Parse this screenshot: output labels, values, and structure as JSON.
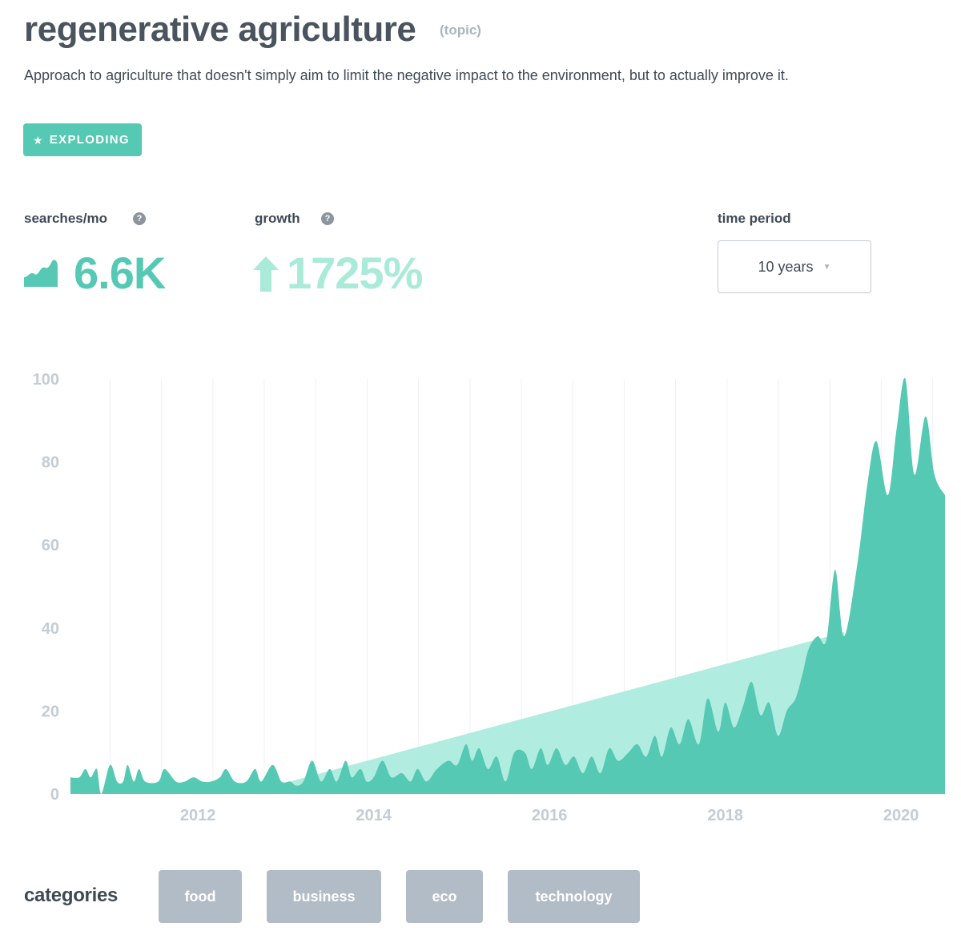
{
  "header": {
    "title": "regenerative agriculture",
    "type_tag": "(topic)",
    "description": "Approach to agriculture that doesn't simply aim to limit the negative impact to the environment, but to actually improve it."
  },
  "status_badge": {
    "label": "EXPLODING",
    "icon": "star-icon",
    "color": "#55c9b3"
  },
  "stats": {
    "searches": {
      "label": "searches/mo",
      "value": "6.6K",
      "icon": "trend-icon"
    },
    "growth": {
      "label": "growth",
      "value": "1725%",
      "icon": "arrow-up-icon"
    },
    "help_icon": "?"
  },
  "time_period": {
    "label": "time period",
    "selected": "10 years"
  },
  "categories": {
    "label": "categories",
    "items": [
      "food",
      "business",
      "eco",
      "technology"
    ]
  },
  "chart_data": {
    "type": "area",
    "title": "",
    "xlabel": "",
    "ylabel": "",
    "ylim": [
      0,
      100
    ],
    "xlim": [
      2010.55,
      2020.5
    ],
    "y_ticks": [
      0,
      20,
      40,
      60,
      80,
      100
    ],
    "x_ticks": [
      2012,
      2014,
      2016,
      2018,
      2020
    ],
    "grid": "vertical",
    "series": [
      {
        "values": [
          [
            2010.55,
            4
          ],
          [
            2010.65,
            4
          ],
          [
            2010.72,
            6
          ],
          [
            2010.78,
            4
          ],
          [
            2010.85,
            6
          ],
          [
            2010.9,
            0
          ],
          [
            2011.0,
            7
          ],
          [
            2011.08,
            3
          ],
          [
            2011.15,
            3
          ],
          [
            2011.2,
            7
          ],
          [
            2011.27,
            3
          ],
          [
            2011.33,
            6
          ],
          [
            2011.4,
            3
          ],
          [
            2011.55,
            3
          ],
          [
            2011.62,
            6
          ],
          [
            2011.75,
            3
          ],
          [
            2011.85,
            3
          ],
          [
            2011.95,
            4
          ],
          [
            2012.05,
            3
          ],
          [
            2012.15,
            3
          ],
          [
            2012.25,
            4
          ],
          [
            2012.32,
            6
          ],
          [
            2012.42,
            3
          ],
          [
            2012.55,
            3
          ],
          [
            2012.65,
            6
          ],
          [
            2012.72,
            3
          ],
          [
            2012.85,
            7
          ],
          [
            2012.95,
            3
          ],
          [
            2013.05,
            3
          ],
          [
            2013.12,
            2
          ],
          [
            2013.2,
            3
          ],
          [
            2013.3,
            8
          ],
          [
            2013.4,
            3
          ],
          [
            2013.5,
            6
          ],
          [
            2013.58,
            3
          ],
          [
            2013.68,
            8
          ],
          [
            2013.75,
            4
          ],
          [
            2013.85,
            6
          ],
          [
            2013.92,
            3
          ],
          [
            2014.0,
            4
          ],
          [
            2014.1,
            8
          ],
          [
            2014.2,
            4
          ],
          [
            2014.32,
            5
          ],
          [
            2014.42,
            3
          ],
          [
            2014.5,
            6
          ],
          [
            2014.6,
            3
          ],
          [
            2014.72,
            6
          ],
          [
            2014.85,
            8
          ],
          [
            2014.95,
            7
          ],
          [
            2015.05,
            12
          ],
          [
            2015.12,
            8
          ],
          [
            2015.2,
            11
          ],
          [
            2015.3,
            6
          ],
          [
            2015.4,
            9
          ],
          [
            2015.5,
            3
          ],
          [
            2015.6,
            10
          ],
          [
            2015.72,
            10
          ],
          [
            2015.8,
            6
          ],
          [
            2015.9,
            11
          ],
          [
            2015.98,
            7
          ],
          [
            2016.08,
            11
          ],
          [
            2016.18,
            7
          ],
          [
            2016.28,
            9
          ],
          [
            2016.38,
            5
          ],
          [
            2016.48,
            9
          ],
          [
            2016.58,
            5
          ],
          [
            2016.68,
            11
          ],
          [
            2016.78,
            8
          ],
          [
            2016.9,
            10
          ],
          [
            2017.0,
            12
          ],
          [
            2017.1,
            9
          ],
          [
            2017.2,
            14
          ],
          [
            2017.28,
            9
          ],
          [
            2017.38,
            16
          ],
          [
            2017.48,
            12
          ],
          [
            2017.58,
            18
          ],
          [
            2017.7,
            12
          ],
          [
            2017.8,
            23
          ],
          [
            2017.92,
            15
          ],
          [
            2018.0,
            22
          ],
          [
            2018.1,
            16
          ],
          [
            2018.2,
            21
          ],
          [
            2018.3,
            27
          ],
          [
            2018.4,
            19
          ],
          [
            2018.5,
            22
          ],
          [
            2018.6,
            14
          ],
          [
            2018.7,
            20
          ],
          [
            2018.8,
            23
          ],
          [
            2018.88,
            29
          ],
          [
            2018.95,
            35
          ],
          [
            2019.05,
            38
          ],
          [
            2019.15,
            37
          ],
          [
            2019.25,
            54
          ],
          [
            2019.35,
            38
          ],
          [
            2019.5,
            55
          ],
          [
            2019.62,
            75
          ],
          [
            2019.72,
            85
          ],
          [
            2019.85,
            72
          ],
          [
            2019.95,
            88
          ],
          [
            2020.05,
            100
          ],
          [
            2020.15,
            77
          ],
          [
            2020.28,
            91
          ],
          [
            2020.38,
            77
          ],
          [
            2020.5,
            72
          ]
        ]
      },
      {
        "values": [
          [
            2013.05,
            3
          ],
          [
            2019.35,
            39
          ]
        ]
      }
    ]
  }
}
